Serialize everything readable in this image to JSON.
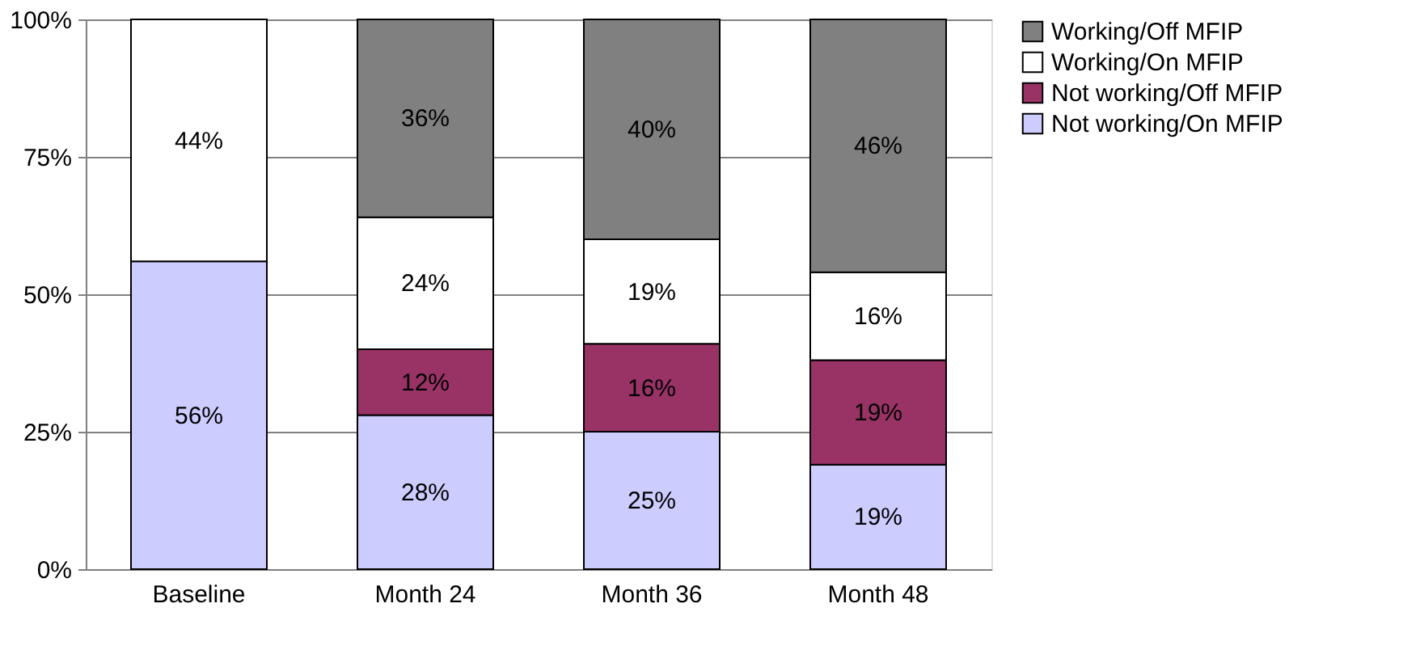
{
  "chart_data": {
    "type": "bar",
    "stacked": true,
    "categories": [
      "Baseline",
      "Month 24",
      "Month 36",
      "Month 48"
    ],
    "series": [
      {
        "name": "Not working/On MFIP",
        "color": "#ccccff",
        "values": [
          56,
          28,
          25,
          19
        ],
        "value_labels": [
          "56%",
          "28%",
          "25%",
          "19%"
        ]
      },
      {
        "name": "Not working/Off MFIP",
        "color": "#993366",
        "values": [
          null,
          12,
          16,
          19
        ],
        "value_labels": [
          null,
          "12%",
          "16%",
          "19%"
        ]
      },
      {
        "name": "Working/On MFIP",
        "color": "#ffffff",
        "values": [
          44,
          24,
          19,
          16
        ],
        "value_labels": [
          "44%",
          "24%",
          "19%",
          "16%"
        ]
      },
      {
        "name": "Working/Off MFIP",
        "color": "#808080",
        "values": [
          null,
          36,
          40,
          46
        ],
        "value_labels": [
          null,
          "36%",
          "40%",
          "46%"
        ]
      }
    ],
    "ylim": [
      0,
      100
    ],
    "yticks": [
      {
        "value": 0,
        "label": "0%"
      },
      {
        "value": 25,
        "label": "25%"
      },
      {
        "value": 50,
        "label": "50%"
      },
      {
        "value": 75,
        "label": "75%"
      },
      {
        "value": 100,
        "label": "100%"
      }
    ],
    "grid": "y",
    "legend": "right"
  }
}
